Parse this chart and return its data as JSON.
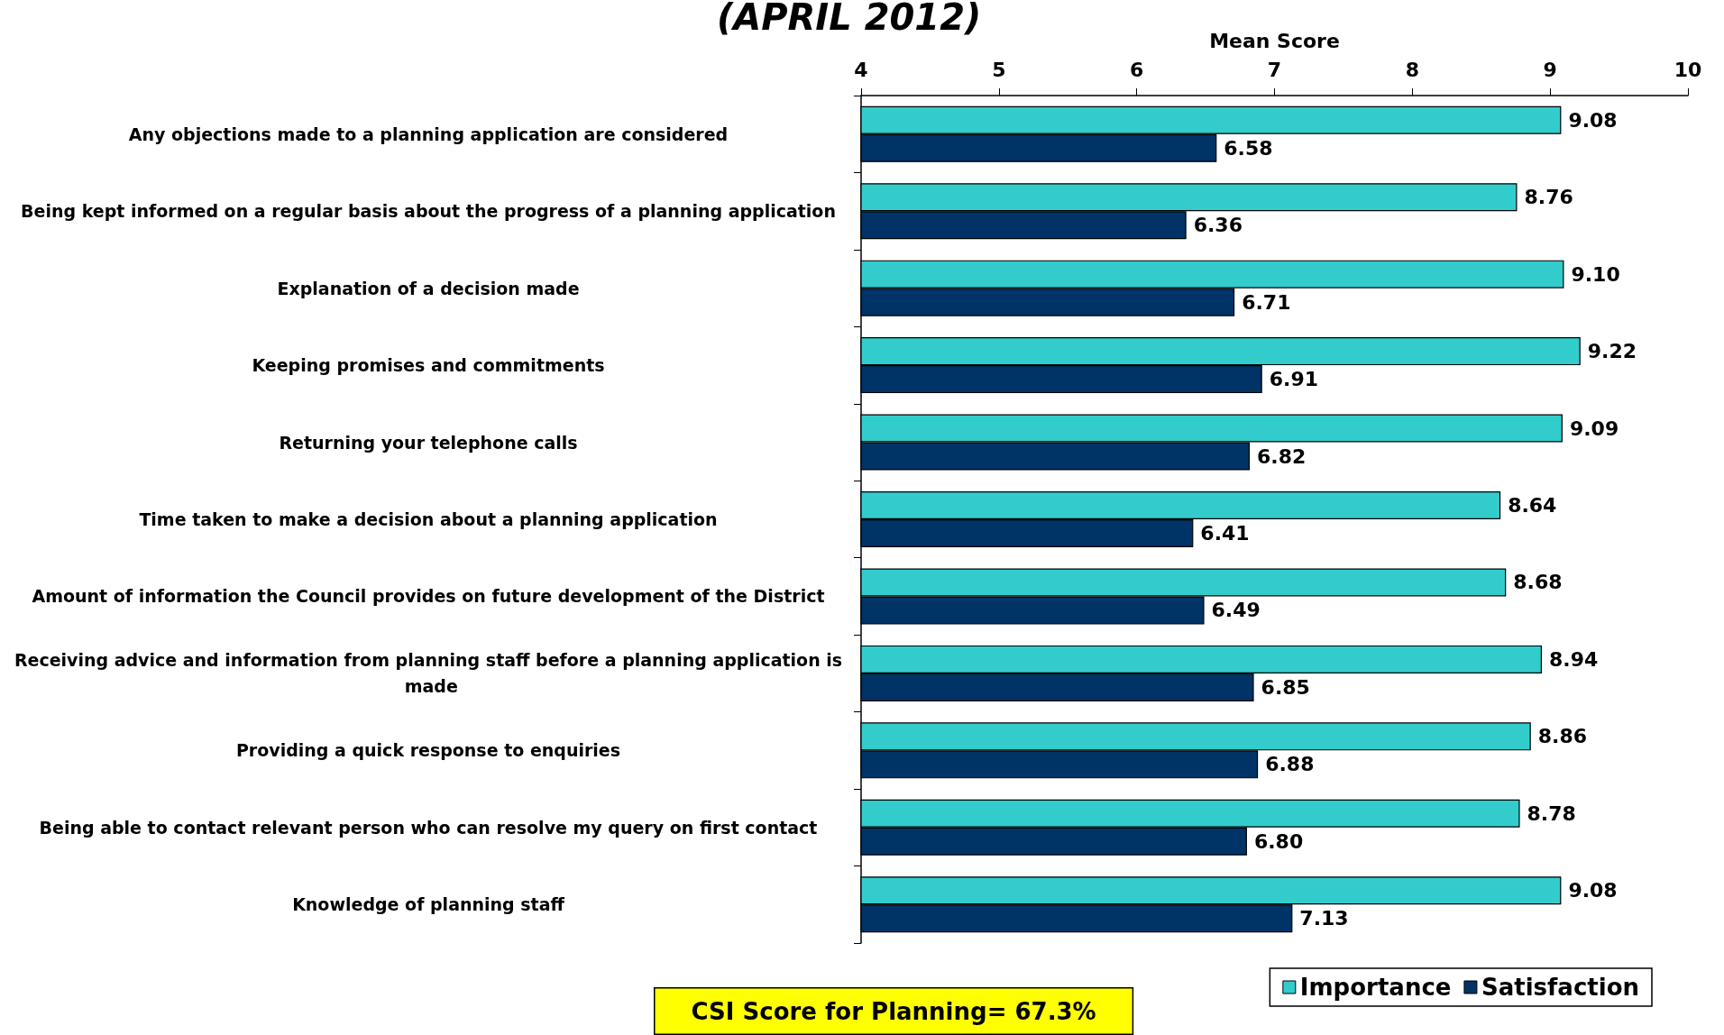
{
  "chart_data": {
    "type": "bar",
    "orientation": "horizontal",
    "title": "(APRIL 2012)",
    "xlabel": "Mean Score",
    "categories": [
      "Any objections made to a planning application are considered",
      "Being kept informed on a regular basis about the progress of a planning application",
      "Explanation of a decision made",
      "Keeping promises and commitments",
      "Returning your telephone calls",
      "Time taken to make a decision about a planning application",
      "Amount of information the Council provides on future development of the District",
      "Receiving advice and information from planning staff before a planning application is made",
      "Providing a quick response to enquiries",
      "Being able to contact relevant person who can resolve my query on first contact",
      "Knowledge of planning staff"
    ],
    "series": [
      {
        "name": "Importance",
        "color": "#33cccc",
        "values": [
          9.08,
          8.76,
          9.1,
          9.22,
          9.09,
          8.64,
          8.68,
          8.94,
          8.86,
          8.78,
          9.08
        ],
        "value_labels": [
          "9.08",
          "8.76",
          "9.10",
          "9.22",
          "9.09",
          "8.64",
          "8.68",
          "8.94",
          "8.86",
          "8.78",
          "9.08"
        ]
      },
      {
        "name": "Satisfaction",
        "color": "#003366",
        "values": [
          6.58,
          6.36,
          6.71,
          6.91,
          6.82,
          6.41,
          6.49,
          6.85,
          6.88,
          6.8,
          7.13
        ],
        "value_labels": [
          "6.58",
          "6.36",
          "6.71",
          "6.91",
          "6.82",
          "6.41",
          "6.49",
          "6.85",
          "6.88",
          "6.80",
          "7.13"
        ]
      }
    ],
    "xlim": [
      4,
      10
    ],
    "xticks": [
      4,
      5,
      6,
      7,
      8,
      9,
      10
    ],
    "grid": false,
    "legend": "bottom right",
    "annotations": [
      "CSI Score for Planning= 67.3%"
    ]
  }
}
